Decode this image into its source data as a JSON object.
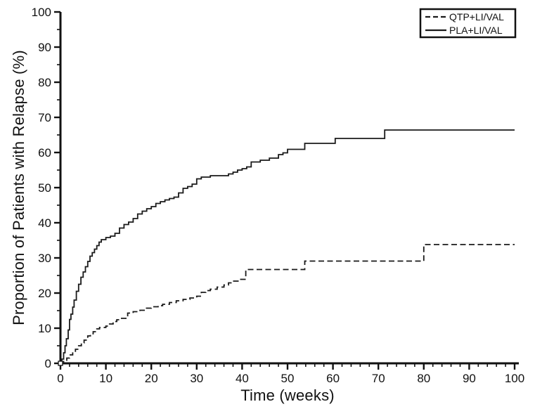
{
  "chart_data": {
    "type": "line",
    "subtype": "kaplan-meier-step",
    "title": "",
    "xlabel": "Time (weeks)",
    "ylabel": "Proportion of Patients with Relapse (%)",
    "xlim": [
      0,
      100
    ],
    "ylim": [
      0,
      100
    ],
    "x_major_ticks": [
      0,
      10,
      20,
      30,
      40,
      50,
      60,
      70,
      80,
      90,
      100
    ],
    "x_minor_step": 2,
    "y_major_ticks": [
      0,
      10,
      20,
      30,
      40,
      50,
      60,
      70,
      80,
      90,
      100
    ],
    "y_minor_step": 5,
    "grid": false,
    "legend_position": "top-right",
    "axis_color": "#111111",
    "background_color": "#ffffff",
    "origin_marker": {
      "shape": "open-square",
      "x": 0,
      "y": 0
    },
    "series": [
      {
        "name": "QTP+LI/VAL",
        "style": "dashed",
        "color": "#1a1a1a",
        "step": true,
        "points": [
          [
            0,
            0
          ],
          [
            0.7,
            0.7
          ],
          [
            1.4,
            1.5
          ],
          [
            2,
            2.4
          ],
          [
            2.7,
            3.2
          ],
          [
            3.3,
            4
          ],
          [
            4,
            5
          ],
          [
            4.6,
            5.8
          ],
          [
            5.2,
            6.6
          ],
          [
            6,
            7.8
          ],
          [
            6.6,
            8.4
          ],
          [
            7.2,
            9
          ],
          [
            8,
            9.8
          ],
          [
            8.6,
            10.2
          ],
          [
            10,
            10.6
          ],
          [
            10.8,
            11.2
          ],
          [
            11.6,
            11.9
          ],
          [
            12.4,
            12.4
          ],
          [
            13.2,
            12.8
          ],
          [
            14.8,
            14.3
          ],
          [
            16,
            14.7
          ],
          [
            17.5,
            15.1
          ],
          [
            18.8,
            15.7
          ],
          [
            20,
            16.1
          ],
          [
            21.5,
            16.4
          ],
          [
            22.5,
            16.8
          ],
          [
            24,
            17.3
          ],
          [
            25.5,
            17.8
          ],
          [
            27,
            18.2
          ],
          [
            28.5,
            18.6
          ],
          [
            30,
            19.1
          ],
          [
            31,
            20.2
          ],
          [
            32,
            20.7
          ],
          [
            33,
            21.1
          ],
          [
            34.5,
            21.7
          ],
          [
            36,
            22.3
          ],
          [
            37,
            22.9
          ],
          [
            38,
            23.4
          ],
          [
            39.5,
            23.9
          ],
          [
            40.8,
            26.7
          ],
          [
            53.8,
            29.1
          ],
          [
            80,
            33.8
          ],
          [
            100,
            33.8
          ]
        ]
      },
      {
        "name": "PLA+LI/VAL",
        "style": "solid",
        "color": "#1a1a1a",
        "step": true,
        "points": [
          [
            0,
            0
          ],
          [
            0.3,
            1.2
          ],
          [
            0.7,
            3
          ],
          [
            1,
            5
          ],
          [
            1.3,
            7
          ],
          [
            1.7,
            9.5
          ],
          [
            2,
            12.5
          ],
          [
            2.3,
            14
          ],
          [
            2.7,
            16
          ],
          [
            3,
            18
          ],
          [
            3.5,
            20.5
          ],
          [
            4,
            22.5
          ],
          [
            4.5,
            24.5
          ],
          [
            5,
            26
          ],
          [
            5.5,
            27.5
          ],
          [
            6,
            29
          ],
          [
            6.5,
            30.5
          ],
          [
            7,
            31.5
          ],
          [
            7.5,
            32.5
          ],
          [
            8,
            33.5
          ],
          [
            8.5,
            34.5
          ],
          [
            9,
            35.2
          ],
          [
            10,
            35.8
          ],
          [
            11,
            36.2
          ],
          [
            12,
            37
          ],
          [
            13,
            38.5
          ],
          [
            14,
            39.5
          ],
          [
            15,
            40.2
          ],
          [
            16,
            41.2
          ],
          [
            17,
            42.5
          ],
          [
            18,
            43.3
          ],
          [
            19,
            44
          ],
          [
            20,
            44.6
          ],
          [
            21,
            45.5
          ],
          [
            22,
            46
          ],
          [
            23,
            46.5
          ],
          [
            24,
            46.9
          ],
          [
            25,
            47.3
          ],
          [
            26,
            48.5
          ],
          [
            27,
            49.8
          ],
          [
            28,
            50.3
          ],
          [
            29,
            51
          ],
          [
            30,
            52.5
          ],
          [
            31,
            53
          ],
          [
            33,
            53.4
          ],
          [
            37,
            53.9
          ],
          [
            38,
            54.4
          ],
          [
            39,
            55
          ],
          [
            40,
            55.4
          ],
          [
            41,
            55.9
          ],
          [
            42,
            57.3
          ],
          [
            44,
            57.8
          ],
          [
            46,
            58.4
          ],
          [
            48,
            59.4
          ],
          [
            49,
            59.9
          ],
          [
            50,
            60.9
          ],
          [
            53.8,
            62.6
          ],
          [
            60.5,
            64
          ],
          [
            71.4,
            66.4
          ],
          [
            100,
            66.4
          ]
        ]
      }
    ]
  }
}
